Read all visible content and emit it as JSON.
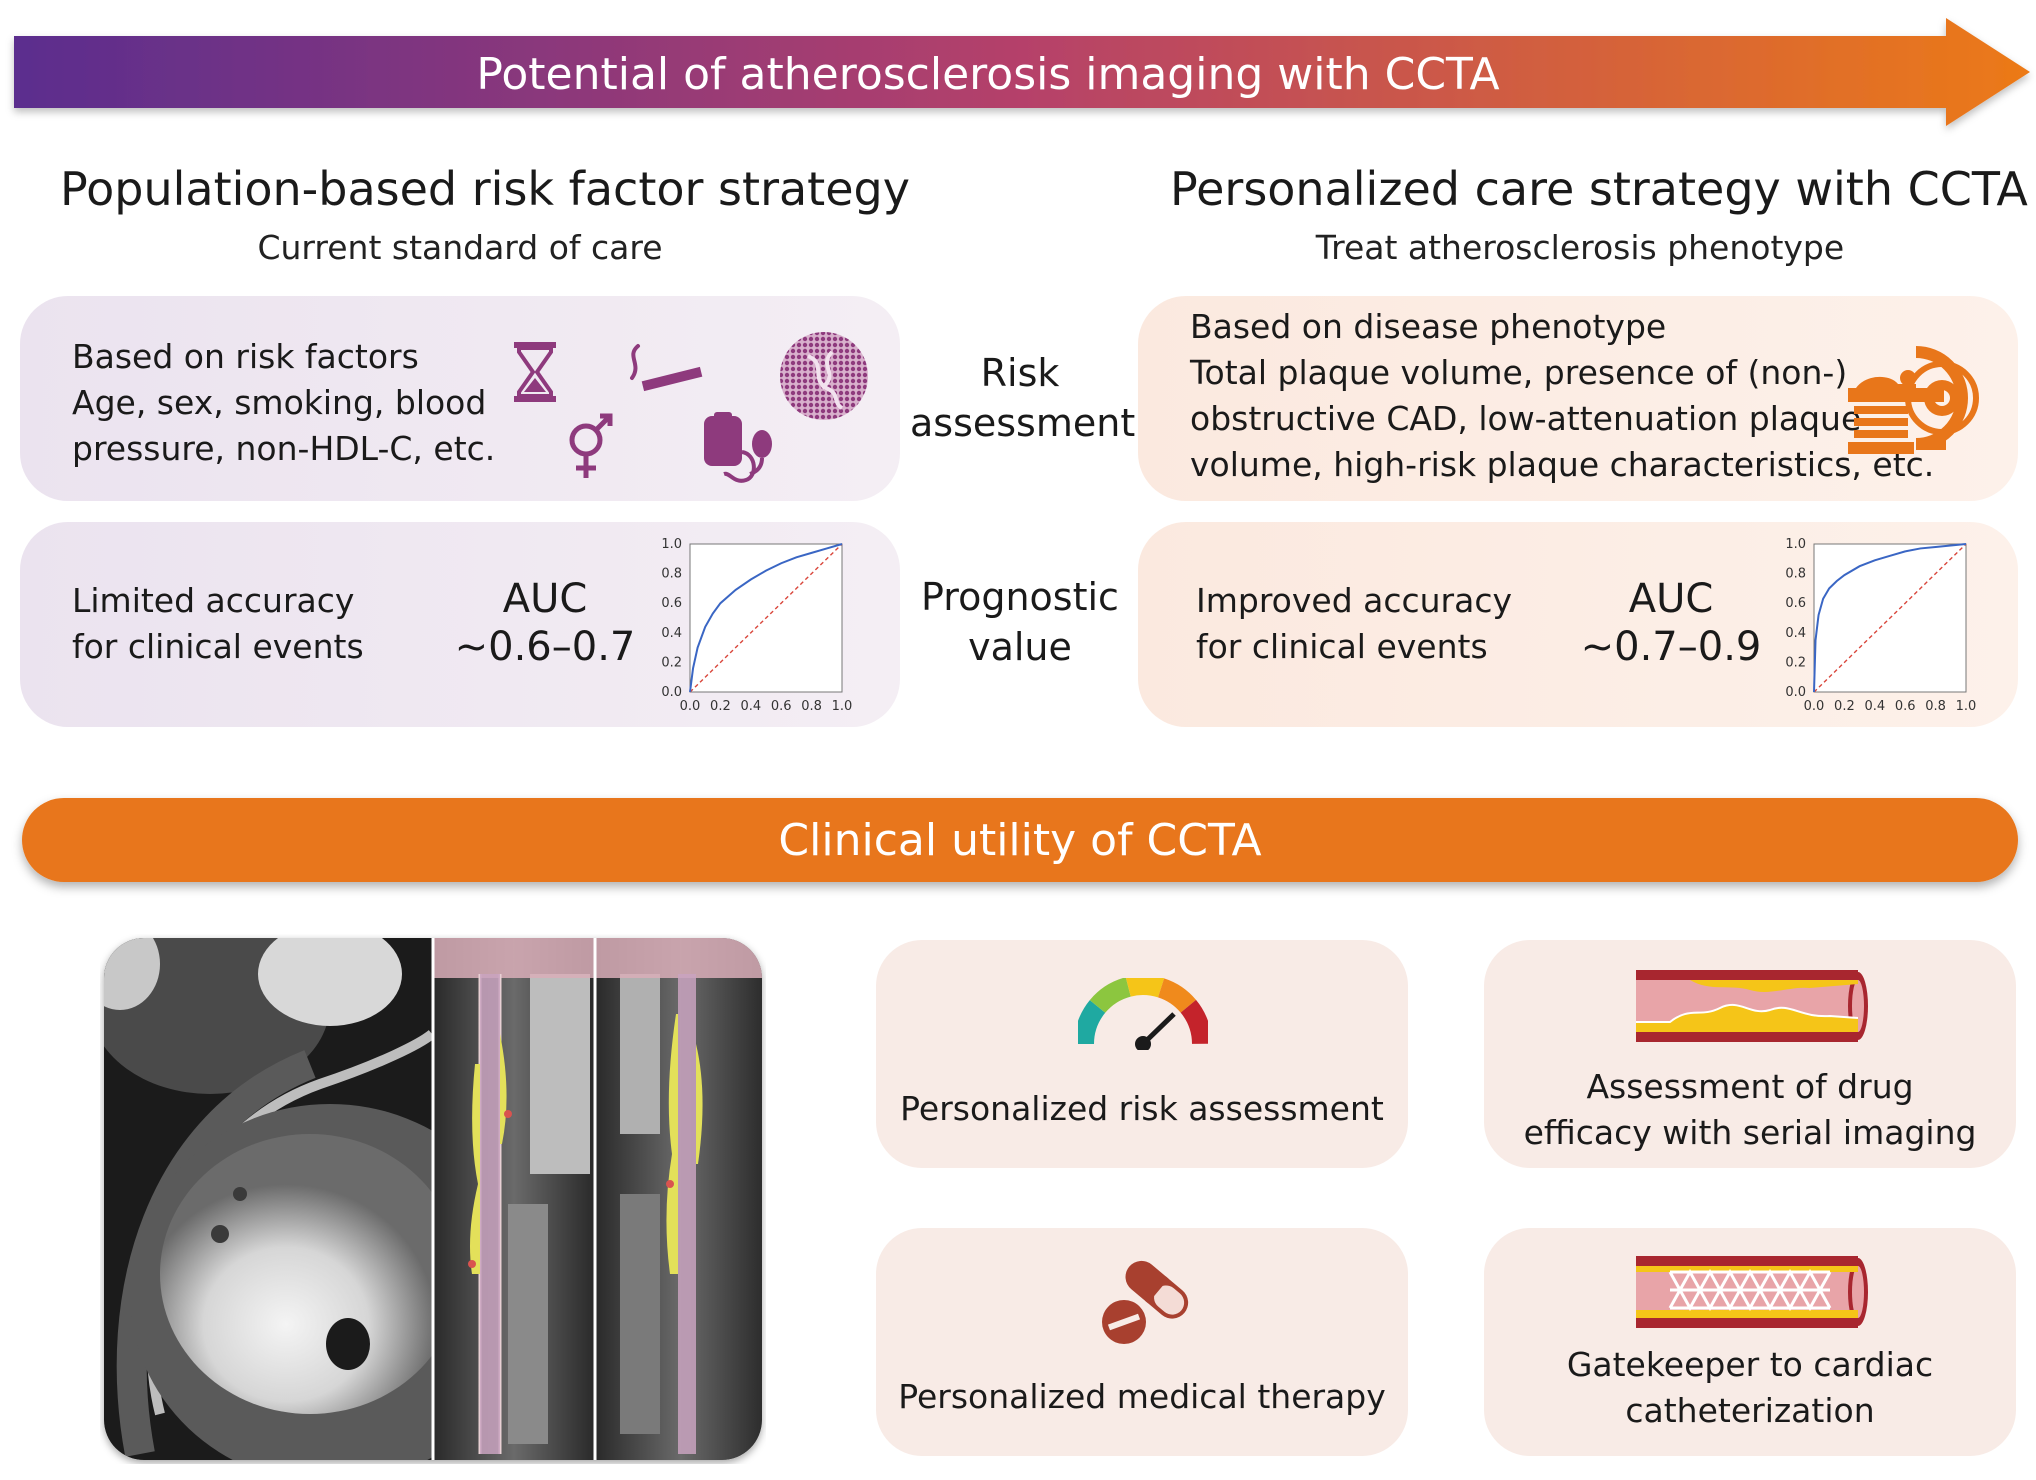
{
  "banner": {
    "title": "Potential of atherosclerosis imaging with CCTA"
  },
  "left": {
    "heading": "Population-based risk factor strategy",
    "subheading": "Current standard of care",
    "risk_title": "Based on risk factors",
    "risk_lines": [
      "Age, sex, smoking, blood",
      "pressure, non-HDL-C, etc."
    ],
    "icons": [
      "hourglass-icon",
      "cigarette-icon",
      "dna-icon",
      "gender-icon",
      "blood-pressure-icon"
    ],
    "accuracy_lines": [
      "Limited accuracy",
      "for clinical events"
    ],
    "auc_label": "AUC",
    "auc_value": "~0.6–0.7"
  },
  "middle": {
    "risk_label": [
      "Risk",
      "assessment"
    ],
    "prognostic_label": [
      "Prognostic",
      "value"
    ]
  },
  "right": {
    "heading": "Personalized care strategy with CCTA",
    "subheading": "Treat atherosclerosis phenotype",
    "phenotype_title": "Based on disease phenotype",
    "phenotype_lines": [
      "Total plaque volume, presence of (non-)",
      "obstructive CAD, low-attenuation plaque",
      "volume, high-risk plaque characteristics, etc."
    ],
    "icons": [
      "ct-scanner-icon"
    ],
    "accuracy_lines": [
      "Improved accuracy",
      "for clinical events"
    ],
    "auc_label": "AUC",
    "auc_value": "~0.7–0.9"
  },
  "utility": {
    "title": "Clinical utility of CCTA",
    "tiles": [
      {
        "label": [
          "Personalized risk assessment"
        ],
        "icon": "gauge-icon"
      },
      {
        "label": [
          "Assessment of drug",
          "efficacy with serial imaging"
        ],
        "icon": "artery-plaque-icon"
      },
      {
        "label": [
          "Personalized medical therapy"
        ],
        "icon": "pill-icon"
      },
      {
        "label": [
          "Gatekeeper to cardiac",
          "catheterization"
        ],
        "icon": "stent-icon"
      }
    ]
  },
  "colors": {
    "purple": "#5b2d8e",
    "orange": "#e8761a",
    "roc_line": "#3a66c4",
    "diagonal": "#d9463b"
  },
  "chart_data": [
    {
      "type": "line",
      "x": [
        0.0,
        0.02,
        0.05,
        0.1,
        0.15,
        0.2,
        0.3,
        0.4,
        0.5,
        0.6,
        0.7,
        0.8,
        0.9,
        1.0
      ],
      "series": [
        {
          "values": [
            0.0,
            0.16,
            0.3,
            0.44,
            0.53,
            0.6,
            0.69,
            0.76,
            0.82,
            0.87,
            0.91,
            0.94,
            0.97,
            1.0
          ]
        }
      ],
      "xticks": [
        "0.0",
        "0.2",
        "0.4",
        "0.6",
        "0.8",
        "1.0"
      ],
      "yticks": [
        "0.0",
        "0.2",
        "0.4",
        "0.6",
        "0.8",
        "1.0"
      ],
      "xlim": [
        0,
        1
      ],
      "ylim": [
        0,
        1
      ],
      "reference_diagonal": true
    },
    {
      "type": "line",
      "x": [
        0.0,
        0.01,
        0.03,
        0.06,
        0.1,
        0.15,
        0.2,
        0.3,
        0.4,
        0.5,
        0.6,
        0.7,
        0.8,
        0.9,
        1.0
      ],
      "series": [
        {
          "values": [
            0.0,
            0.35,
            0.52,
            0.63,
            0.7,
            0.75,
            0.79,
            0.85,
            0.89,
            0.92,
            0.95,
            0.97,
            0.98,
            0.99,
            1.0
          ]
        }
      ],
      "xticks": [
        "0.0",
        "0.2",
        "0.4",
        "0.6",
        "0.8",
        "1.0"
      ],
      "yticks": [
        "0.0",
        "0.2",
        "0.4",
        "0.6",
        "0.8",
        "1.0"
      ],
      "xlim": [
        0,
        1
      ],
      "ylim": [
        0,
        1
      ],
      "reference_diagonal": true
    }
  ]
}
